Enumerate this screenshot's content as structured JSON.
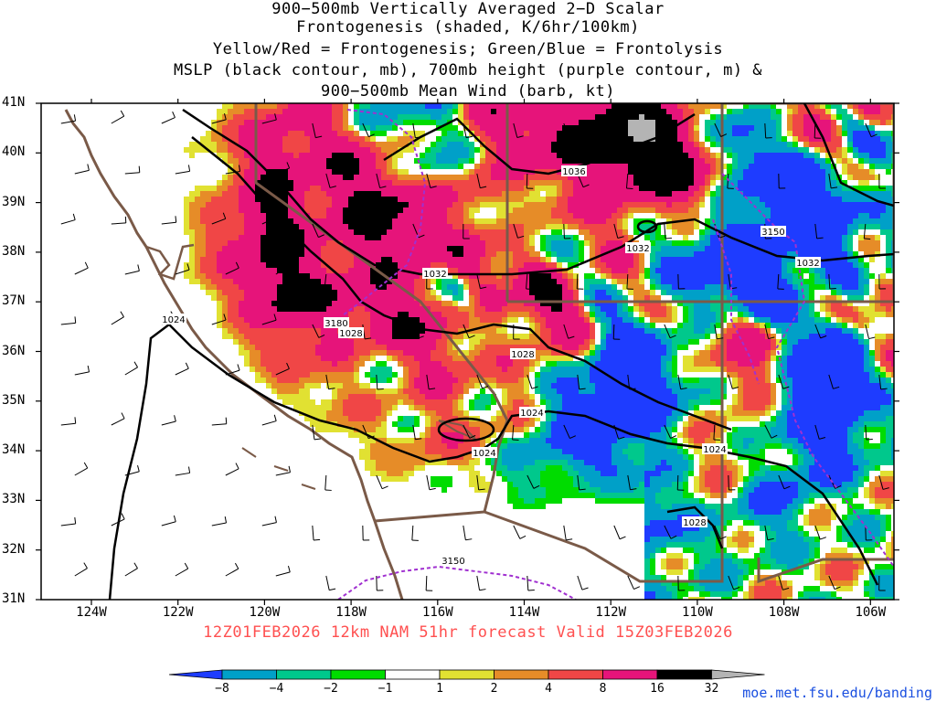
{
  "title": {
    "lines": [
      "900−500mb Vertically Averaged 2−D Scalar",
      "Frontogenesis (shaded, K/6hr/100km)",
      "Yellow/Red = Frontogenesis;  Green/Blue = Frontolysis",
      "MSLP (black contour, mb), 700mb height (purple contour, m) &",
      "900−500mb Mean Wind (barb, kt)"
    ]
  },
  "valid_line": "12Z01FEB2026 12km NAM 51hr forecast Valid 15Z03FEB2026",
  "credit": "moe.met.fsu.edu/banding",
  "map": {
    "lon_labels": [
      "124W",
      "122W",
      "120W",
      "118W",
      "116W",
      "114W",
      "112W",
      "110W",
      "108W",
      "106W"
    ],
    "lat_labels": [
      "41N",
      "40N",
      "39N",
      "38N",
      "37N",
      "36N",
      "35N",
      "34N",
      "33N",
      "32N",
      "31N"
    ],
    "mslp_labels": [
      "1036",
      "1032",
      "1032",
      "1032",
      "1028",
      "1028",
      "1024",
      "1024",
      "1024",
      "1024",
      "1028"
    ],
    "height_labels": [
      "3150",
      "3180",
      "3150"
    ]
  },
  "colorbar": {
    "labels": [
      "−8",
      "−4",
      "−2",
      "−1",
      "1",
      "2",
      "4",
      "8",
      "16",
      "32"
    ],
    "colors": [
      "#1e3cff",
      "#00a0c8",
      "#00c88c",
      "#00dc00",
      "#ffffff",
      "#e1e132",
      "#e68c28",
      "#f04646",
      "#e6147a",
      "#000000",
      "#b4b4b4"
    ]
  }
}
